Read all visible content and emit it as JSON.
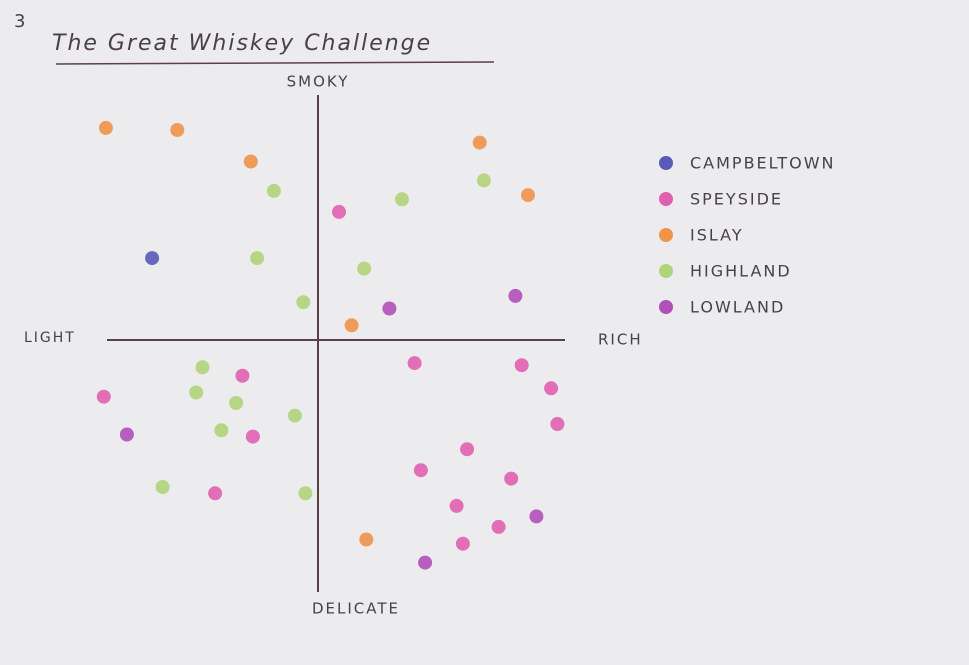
{
  "chart_data": {
    "type": "scatter",
    "title": "The Great Whiskey Challenge",
    "annotations": [
      "3"
    ],
    "x_label_left": "LIGHT",
    "x_label_right": "RICH",
    "y_label_top": "SMOKY",
    "y_label_bottom": "DELICATE",
    "xlim": [
      -11,
      12
    ],
    "ylim": [
      -12,
      12
    ],
    "legend": "right",
    "series": [
      {
        "name": "CAMPBELTOWN",
        "color": "#5a5ab8",
        "x": [
          -7.9
        ],
        "values": [
          3.9
        ]
      },
      {
        "name": "SPEYSIDE",
        "color": "#e060b0",
        "x": [
          1.0,
          -10.2,
          -3.6,
          -3.1,
          -4.9,
          4.6,
          9.7,
          11.1,
          11.4,
          7.1,
          4.9,
          9.2,
          6.6,
          8.6,
          6.9
        ],
        "values": [
          6.1,
          -2.7,
          -1.7,
          -4.6,
          -7.3,
          -1.1,
          -1.2,
          -2.3,
          -4.0,
          -5.2,
          -6.2,
          -6.6,
          -7.9,
          -8.9,
          -9.7
        ]
      },
      {
        "name": "ISLAY",
        "color": "#f0944a",
        "x": [
          -10.1,
          -6.7,
          -3.2,
          7.7,
          10.0,
          1.6,
          2.3
        ],
        "values": [
          10.1,
          10.0,
          8.5,
          9.4,
          6.9,
          0.7,
          -9.5
        ]
      },
      {
        "name": "HIGHLAND",
        "color": "#b0d47a",
        "x": [
          -2.1,
          4.0,
          7.9,
          -2.9,
          2.2,
          -0.7,
          -5.5,
          -5.8,
          -3.9,
          -1.1,
          -4.6,
          -7.4,
          -0.6
        ],
        "values": [
          7.1,
          6.7,
          7.6,
          3.9,
          3.4,
          1.8,
          -1.3,
          -2.5,
          -3.0,
          -3.6,
          -4.3,
          -7.0,
          -7.3
        ]
      },
      {
        "name": "LOWLAND",
        "color": "#b050b8",
        "x": [
          -9.1,
          3.4,
          9.4,
          10.4,
          5.1
        ],
        "values": [
          -4.5,
          1.5,
          2.1,
          -8.4,
          -10.6
        ]
      }
    ]
  }
}
